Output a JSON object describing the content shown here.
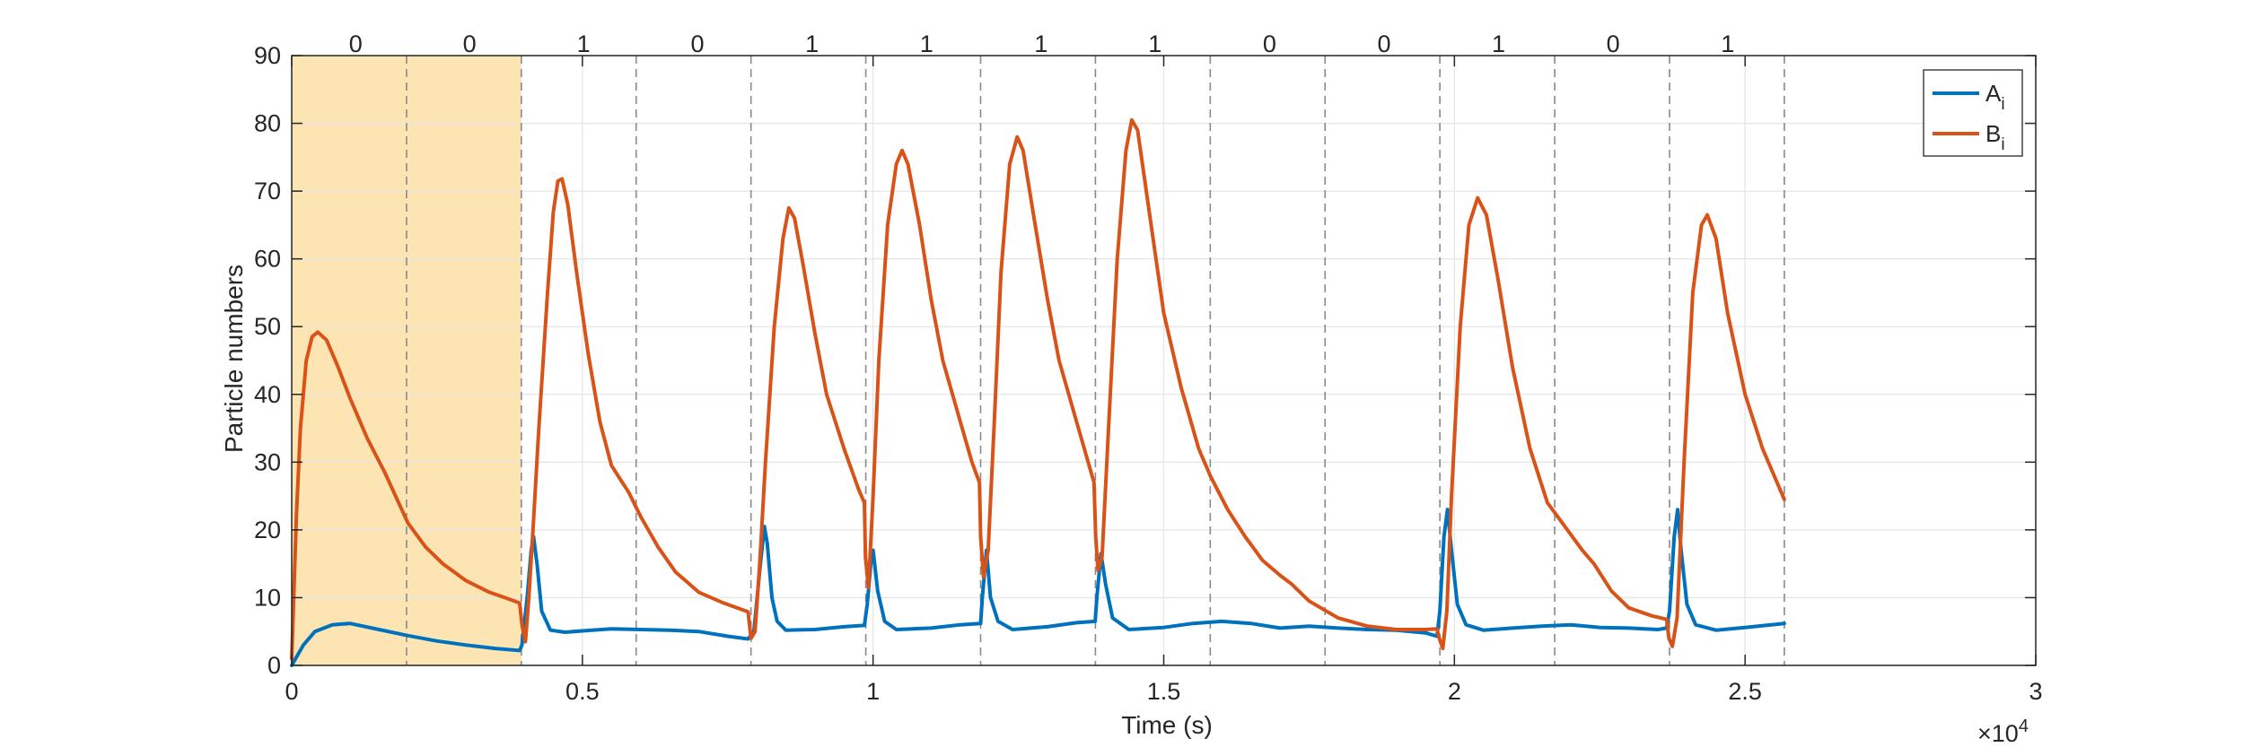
{
  "chart_data": {
    "type": "line",
    "xlabel": "Time (s)",
    "ylabel": "Particle numbers",
    "xlim": [
      0,
      30000
    ],
    "ylim": [
      0,
      90
    ],
    "x_exponent_label": "×10",
    "x_exponent_power": "4",
    "xticks": [
      0,
      5000,
      10000,
      15000,
      20000,
      25000,
      30000
    ],
    "xtick_labels": [
      "0",
      "0.5",
      "1",
      "1.5",
      "2",
      "2.5",
      "3"
    ],
    "yticks": [
      0,
      10,
      20,
      30,
      40,
      50,
      60,
      70,
      80,
      90
    ],
    "ytick_labels": [
      "0",
      "10",
      "20",
      "30",
      "40",
      "50",
      "60",
      "70",
      "80",
      "90"
    ],
    "grid": true,
    "legend_position": "top-right",
    "shaded_region": {
      "x_start": 0,
      "x_end": 3950,
      "color": "#fde4b3"
    },
    "dashed_lines_x": [
      1975,
      3950,
      5925,
      7900,
      9875,
      11850,
      13825,
      15800,
      17775,
      19750,
      21725,
      23700,
      25675
    ],
    "bits": [
      {
        "label": "0",
        "x": 1100
      },
      {
        "label": "0",
        "x": 3060
      },
      {
        "label": "1",
        "x": 5020
      },
      {
        "label": "0",
        "x": 6980
      },
      {
        "label": "1",
        "x": 8950
      },
      {
        "label": "1",
        "x": 10920
      },
      {
        "label": "1",
        "x": 12890
      },
      {
        "label": "1",
        "x": 14850
      },
      {
        "label": "0",
        "x": 16820
      },
      {
        "label": "0",
        "x": 18790
      },
      {
        "label": "1",
        "x": 20760
      },
      {
        "label": "0",
        "x": 22730
      },
      {
        "label": "1",
        "x": 24700
      }
    ],
    "series": [
      {
        "name": "A",
        "subscript": "i",
        "color": "#0072BD",
        "points": [
          [
            0,
            0
          ],
          [
            200,
            3
          ],
          [
            400,
            5
          ],
          [
            700,
            6
          ],
          [
            1000,
            6.2
          ],
          [
            1500,
            5.3
          ],
          [
            2000,
            4.4
          ],
          [
            2500,
            3.6
          ],
          [
            3000,
            3
          ],
          [
            3500,
            2.5
          ],
          [
            3920,
            2.2
          ],
          [
            3960,
            3
          ],
          [
            4050,
            10
          ],
          [
            4120,
            17
          ],
          [
            4160,
            19
          ],
          [
            4220,
            15
          ],
          [
            4300,
            8
          ],
          [
            4450,
            5.2
          ],
          [
            4700,
            4.9
          ],
          [
            5000,
            5.1
          ],
          [
            5500,
            5.4
          ],
          [
            6000,
            5.3
          ],
          [
            6500,
            5.2
          ],
          [
            7000,
            5
          ],
          [
            7500,
            4.3
          ],
          [
            7850,
            3.9
          ],
          [
            7950,
            5
          ],
          [
            8050,
            14
          ],
          [
            8130,
            20.5
          ],
          [
            8180,
            18
          ],
          [
            8260,
            10
          ],
          [
            8350,
            6.5
          ],
          [
            8500,
            5.2
          ],
          [
            9000,
            5.3
          ],
          [
            9500,
            5.7
          ],
          [
            9850,
            5.9
          ],
          [
            9900,
            9
          ],
          [
            9960,
            15
          ],
          [
            10000,
            17
          ],
          [
            10080,
            11
          ],
          [
            10200,
            6.5
          ],
          [
            10400,
            5.3
          ],
          [
            11000,
            5.5
          ],
          [
            11500,
            6
          ],
          [
            11850,
            6.2
          ],
          [
            11880,
            10
          ],
          [
            11950,
            17
          ],
          [
            12020,
            10
          ],
          [
            12150,
            6.5
          ],
          [
            12400,
            5.3
          ],
          [
            13000,
            5.7
          ],
          [
            13500,
            6.3
          ],
          [
            13820,
            6.5
          ],
          [
            13850,
            10
          ],
          [
            13920,
            16.5
          ],
          [
            14000,
            12
          ],
          [
            14120,
            7
          ],
          [
            14400,
            5.3
          ],
          [
            15000,
            5.6
          ],
          [
            15500,
            6.2
          ],
          [
            16000,
            6.5
          ],
          [
            16500,
            6.2
          ],
          [
            17000,
            5.5
          ],
          [
            17500,
            5.8
          ],
          [
            18000,
            5.5
          ],
          [
            18500,
            5.3
          ],
          [
            19000,
            5.2
          ],
          [
            19500,
            4.8
          ],
          [
            19700,
            4.3
          ],
          [
            19750,
            8
          ],
          [
            19820,
            19
          ],
          [
            19880,
            23
          ],
          [
            19950,
            17
          ],
          [
            20050,
            9
          ],
          [
            20200,
            6
          ],
          [
            20500,
            5.2
          ],
          [
            21000,
            5.5
          ],
          [
            21500,
            5.8
          ],
          [
            22000,
            6
          ],
          [
            22500,
            5.6
          ],
          [
            23000,
            5.5
          ],
          [
            23500,
            5.3
          ],
          [
            23650,
            5.5
          ],
          [
            23700,
            8
          ],
          [
            23780,
            19
          ],
          [
            23840,
            23
          ],
          [
            23900,
            17
          ],
          [
            24000,
            9
          ],
          [
            24150,
            6
          ],
          [
            24500,
            5.2
          ],
          [
            25000,
            5.6
          ],
          [
            25675,
            6.2
          ]
        ]
      },
      {
        "name": "B",
        "subscript": "i",
        "color": "#D95319",
        "points": [
          [
            0,
            1
          ],
          [
            80,
            22
          ],
          [
            150,
            35
          ],
          [
            250,
            45
          ],
          [
            350,
            48.5
          ],
          [
            450,
            49.2
          ],
          [
            600,
            48
          ],
          [
            800,
            44
          ],
          [
            1000,
            39.5
          ],
          [
            1300,
            33.5
          ],
          [
            1600,
            28.5
          ],
          [
            2000,
            21
          ],
          [
            2300,
            17.5
          ],
          [
            2600,
            15
          ],
          [
            3000,
            12.5
          ],
          [
            3400,
            10.8
          ],
          [
            3800,
            9.6
          ],
          [
            3920,
            9.2
          ],
          [
            3960,
            6
          ],
          [
            4020,
            3.5
          ],
          [
            4080,
            10
          ],
          [
            4150,
            20
          ],
          [
            4250,
            35
          ],
          [
            4400,
            55
          ],
          [
            4500,
            67
          ],
          [
            4580,
            71.5
          ],
          [
            4650,
            71.8
          ],
          [
            4750,
            68
          ],
          [
            4900,
            58
          ],
          [
            5100,
            46
          ],
          [
            5300,
            36
          ],
          [
            5500,
            29.5
          ],
          [
            5800,
            25.5
          ],
          [
            6000,
            22
          ],
          [
            6300,
            17.5
          ],
          [
            6600,
            13.8
          ],
          [
            7000,
            10.8
          ],
          [
            7400,
            9.3
          ],
          [
            7850,
            7.9
          ],
          [
            7900,
            4
          ],
          [
            7970,
            5
          ],
          [
            8050,
            15
          ],
          [
            8150,
            30
          ],
          [
            8300,
            50
          ],
          [
            8450,
            63
          ],
          [
            8550,
            67.5
          ],
          [
            8650,
            66
          ],
          [
            8800,
            59
          ],
          [
            9000,
            49
          ],
          [
            9200,
            40
          ],
          [
            9500,
            32
          ],
          [
            9750,
            26
          ],
          [
            9850,
            24
          ],
          [
            9870,
            16
          ],
          [
            9920,
            11.5
          ],
          [
            10000,
            25
          ],
          [
            10100,
            45
          ],
          [
            10250,
            65
          ],
          [
            10400,
            74
          ],
          [
            10500,
            76
          ],
          [
            10600,
            74
          ],
          [
            10800,
            65
          ],
          [
            11000,
            54
          ],
          [
            11200,
            45
          ],
          [
            11500,
            36
          ],
          [
            11700,
            30
          ],
          [
            11830,
            27
          ],
          [
            11850,
            19
          ],
          [
            11900,
            13
          ],
          [
            11980,
            17
          ],
          [
            12080,
            35
          ],
          [
            12200,
            58
          ],
          [
            12350,
            74
          ],
          [
            12480,
            78
          ],
          [
            12580,
            76
          ],
          [
            12750,
            67
          ],
          [
            13000,
            54
          ],
          [
            13200,
            45
          ],
          [
            13500,
            36
          ],
          [
            13700,
            30
          ],
          [
            13800,
            27
          ],
          [
            13830,
            19
          ],
          [
            13870,
            14
          ],
          [
            13940,
            16
          ],
          [
            14050,
            35
          ],
          [
            14200,
            60
          ],
          [
            14350,
            76
          ],
          [
            14450,
            80.5
          ],
          [
            14550,
            79
          ],
          [
            14750,
            67
          ],
          [
            15000,
            52
          ],
          [
            15300,
            41
          ],
          [
            15600,
            32
          ],
          [
            15800,
            28
          ],
          [
            16100,
            23
          ],
          [
            16400,
            19
          ],
          [
            16700,
            15.5
          ],
          [
            17000,
            13.3
          ],
          [
            17200,
            12
          ],
          [
            17500,
            9.5
          ],
          [
            18000,
            7
          ],
          [
            18500,
            5.8
          ],
          [
            19000,
            5.3
          ],
          [
            19500,
            5.3
          ],
          [
            19700,
            5.4
          ],
          [
            19740,
            4
          ],
          [
            19800,
            2.5
          ],
          [
            19870,
            8
          ],
          [
            19950,
            25
          ],
          [
            20100,
            50
          ],
          [
            20250,
            65
          ],
          [
            20400,
            69
          ],
          [
            20550,
            66.5
          ],
          [
            20750,
            57
          ],
          [
            21000,
            44
          ],
          [
            21300,
            32
          ],
          [
            21600,
            24
          ],
          [
            21900,
            20.5
          ],
          [
            22200,
            17
          ],
          [
            22400,
            15
          ],
          [
            22700,
            11
          ],
          [
            23000,
            8.5
          ],
          [
            23400,
            7.3
          ],
          [
            23650,
            6.8
          ],
          [
            23690,
            4
          ],
          [
            23750,
            2.8
          ],
          [
            23830,
            7
          ],
          [
            23950,
            30
          ],
          [
            24100,
            55
          ],
          [
            24250,
            65
          ],
          [
            24350,
            66.5
          ],
          [
            24500,
            63
          ],
          [
            24700,
            52
          ],
          [
            25000,
            40
          ],
          [
            25300,
            32
          ],
          [
            25675,
            24.5
          ]
        ]
      }
    ]
  }
}
